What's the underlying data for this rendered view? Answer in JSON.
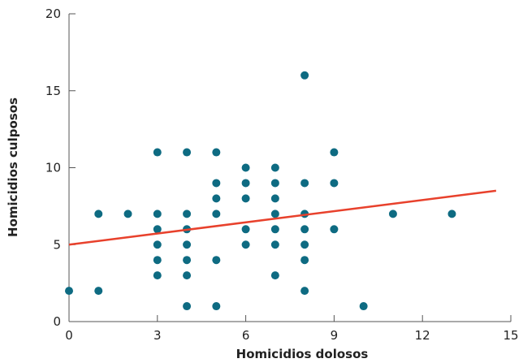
{
  "chart_data": {
    "type": "scatter",
    "title": "",
    "xlabel": "Homicidios dolosos",
    "ylabel": "Homicidios culposos",
    "xlim": [
      0,
      15
    ],
    "ylim": [
      0,
      20
    ],
    "x_ticks": [
      0,
      3,
      6,
      9,
      12,
      15
    ],
    "x_tick_labels": [
      "0",
      "3",
      "6",
      "9",
      "12",
      "15"
    ],
    "y_ticks": [
      0,
      5,
      10,
      15,
      20
    ],
    "y_tick_labels": [
      "0",
      "5",
      "10",
      "15",
      "20"
    ],
    "grid": false,
    "point_color": "#0e6b82",
    "trend_color": "#e8412c",
    "series": [
      {
        "points": [
          [
            0,
            2
          ],
          [
            1,
            7
          ],
          [
            1,
            2
          ],
          [
            2,
            7
          ],
          [
            3,
            11
          ],
          [
            3,
            7
          ],
          [
            3,
            6
          ],
          [
            3,
            5
          ],
          [
            3,
            4
          ],
          [
            3,
            3
          ],
          [
            4,
            11
          ],
          [
            4,
            7
          ],
          [
            4,
            6
          ],
          [
            4,
            5
          ],
          [
            4,
            4
          ],
          [
            4,
            3
          ],
          [
            4,
            1
          ],
          [
            5,
            11
          ],
          [
            5,
            9
          ],
          [
            5,
            8
          ],
          [
            5,
            7
          ],
          [
            5,
            4
          ],
          [
            5,
            1
          ],
          [
            6,
            10
          ],
          [
            6,
            9
          ],
          [
            6,
            8
          ],
          [
            6,
            6
          ],
          [
            6,
            5
          ],
          [
            7,
            10
          ],
          [
            7,
            9
          ],
          [
            7,
            8
          ],
          [
            7,
            7
          ],
          [
            7,
            6
          ],
          [
            7,
            5
          ],
          [
            7,
            3
          ],
          [
            8,
            16
          ],
          [
            8,
            9
          ],
          [
            8,
            7
          ],
          [
            8,
            6
          ],
          [
            8,
            5
          ],
          [
            8,
            4
          ],
          [
            8,
            2
          ],
          [
            9,
            11
          ],
          [
            9,
            9
          ],
          [
            9,
            6
          ],
          [
            10,
            1
          ],
          [
            11,
            7
          ],
          [
            13,
            7
          ]
        ]
      }
    ],
    "trend_line": {
      "x": [
        0,
        14.5
      ],
      "y": [
        5.0,
        8.5
      ]
    }
  }
}
